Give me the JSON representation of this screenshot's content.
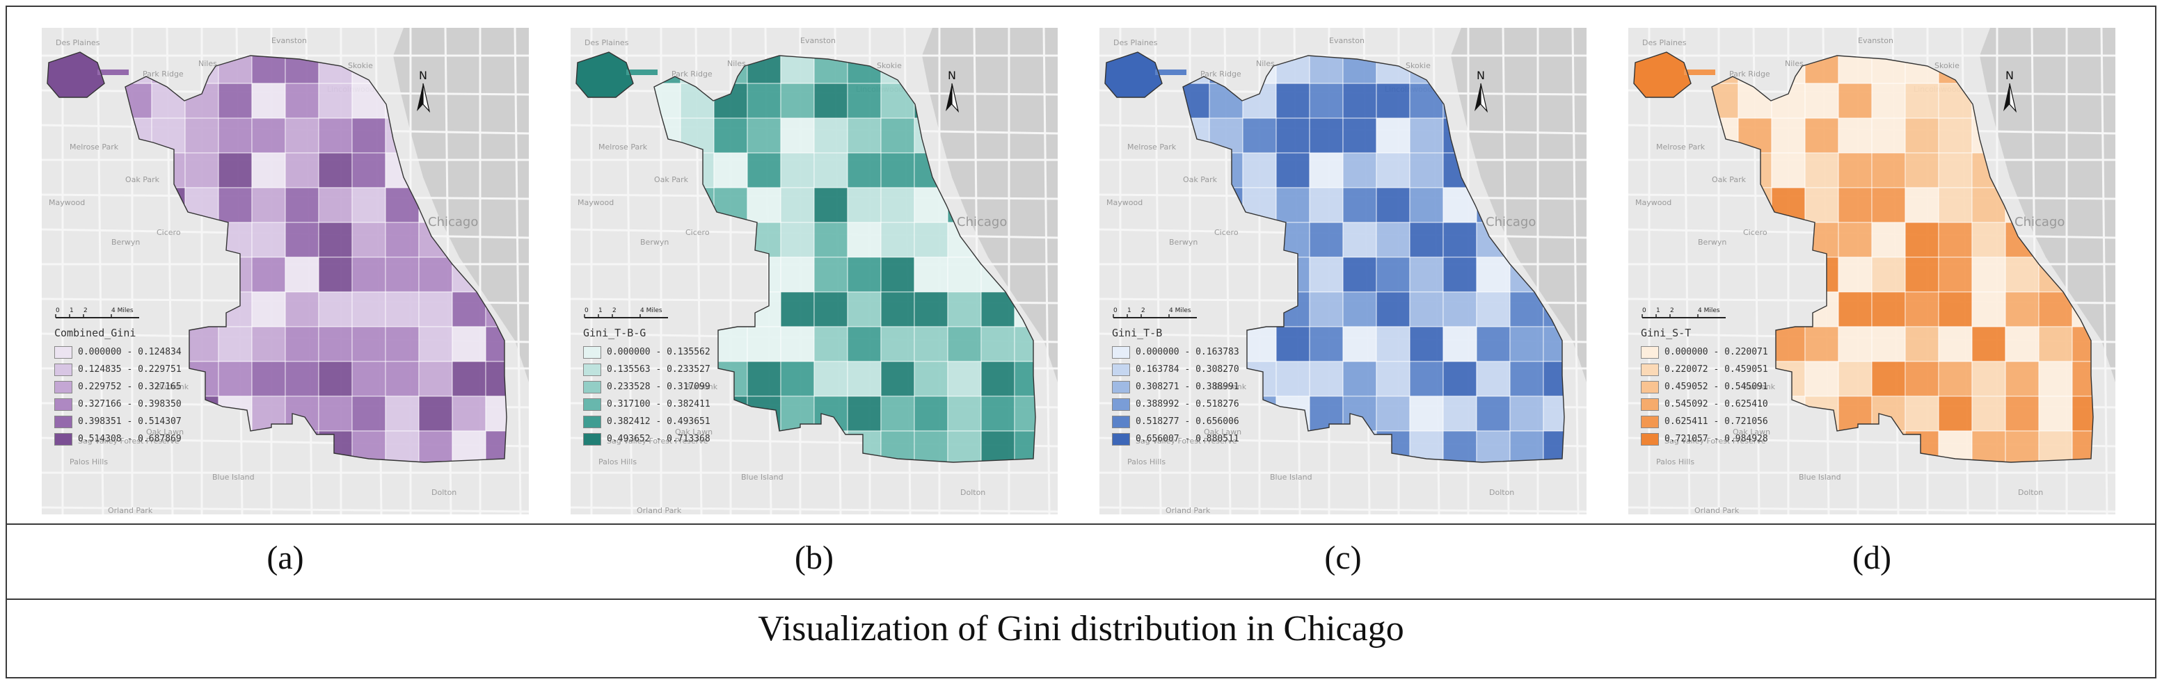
{
  "title": "Visualization of Gini distribution in Chicago",
  "panels": [
    {
      "label": "(a)",
      "legend_title": "Combined_Gini",
      "colors": [
        "#ece4f1",
        "#d8c6e4",
        "#c4a7d4",
        "#ae88c2",
        "#9469ac",
        "#7b4f94"
      ],
      "ranges": [
        "0.000000 - 0.124834",
        "0.124835 - 0.229751",
        "0.229752 - 0.327165",
        "0.327166 - 0.398350",
        "0.398351 - 0.514307",
        "0.514308 - 0.687869"
      ]
    },
    {
      "label": "(b)",
      "legend_title": "Gini_T-B-G",
      "colors": [
        "#e4f3f1",
        "#bfe3de",
        "#93cec6",
        "#68b7ad",
        "#3f9d92",
        "#217f75"
      ],
      "ranges": [
        "0.000000 - 0.135562",
        "0.135563 - 0.233527",
        "0.233528 - 0.317099",
        "0.317100 - 0.382411",
        "0.382412 - 0.493651",
        "0.493652 - 0.713368"
      ]
    },
    {
      "label": "(c)",
      "legend_title": "Gini_T-B",
      "colors": [
        "#e6eef9",
        "#c5d6f0",
        "#9fbae4",
        "#7a9dd7",
        "#5a82c9",
        "#3d67b8"
      ],
      "ranges": [
        "0.000000 - 0.163783",
        "0.163784 - 0.308270",
        "0.308271 - 0.388991",
        "0.388992 - 0.518276",
        "0.518277 - 0.656006",
        "0.656007 - 0.880511"
      ]
    },
    {
      "label": "(d)",
      "legend_title": "Gini_S-T",
      "colors": [
        "#fdeedd",
        "#fbd9b6",
        "#f9c391",
        "#f6ab6c",
        "#f3974f",
        "#ef8434"
      ],
      "ranges": [
        "0.000000 - 0.220071",
        "0.220072 - 0.459051",
        "0.459052 - 0.545091",
        "0.545092 - 0.625410",
        "0.625411 - 0.721056",
        "0.721057 - 0.984928"
      ]
    }
  ],
  "basemap_places": [
    "Evanston",
    "Des Plaines",
    "Niles",
    "Skokie",
    "Park Ridge",
    "Lincolnwood",
    "Melrose Park",
    "Oak Park",
    "Maywood",
    "Berwyn",
    "Cicero",
    "Chicago",
    "Burbank",
    "Oak Lawn",
    "Blue Island",
    "Dolton",
    "Orland Park",
    "Tinley Creek",
    "Palos Hills",
    "Sag Valley Forest Preserve"
  ],
  "scale": {
    "ticks": [
      "0",
      "1",
      "2",
      "4 Miles"
    ]
  },
  "north_label": "N"
}
